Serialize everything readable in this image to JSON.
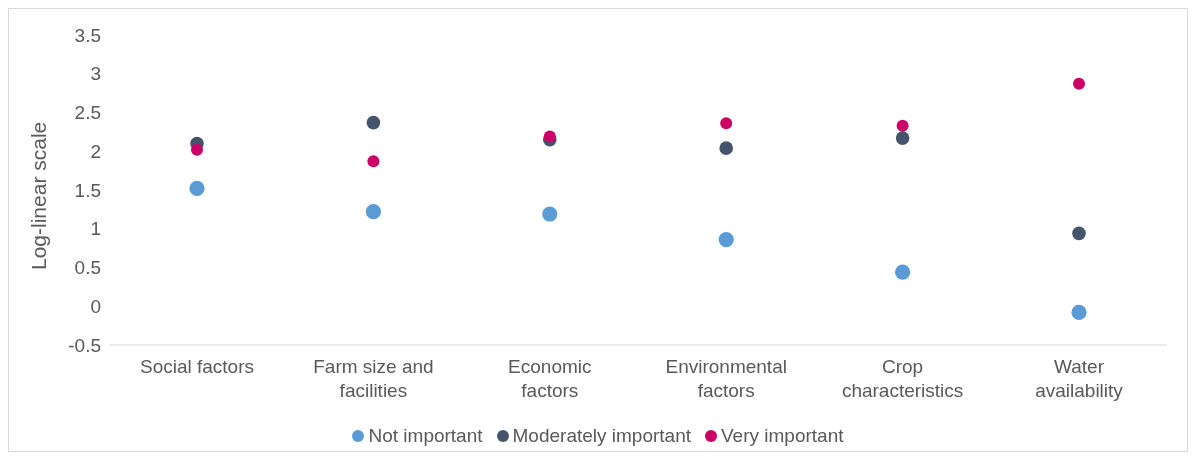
{
  "chart_data": {
    "type": "scatter",
    "ylabel": "Log-linear scale",
    "categories": [
      "Social factors",
      "Farm size and facilities",
      "Economic factors",
      "Environmental factors",
      "Crop characteristics",
      "Water availability"
    ],
    "series": [
      {
        "name": "Not important",
        "color": "#5b9bd5",
        "values": [
          1.52,
          1.22,
          1.19,
          0.86,
          0.44,
          -0.08
        ]
      },
      {
        "name": "Moderately important",
        "color": "#44546a",
        "values": [
          2.1,
          2.37,
          2.15,
          2.04,
          2.17,
          0.94
        ]
      },
      {
        "name": "Very important",
        "color": "#cc0066",
        "values": [
          2.02,
          1.87,
          2.19,
          2.36,
          2.33,
          2.87
        ]
      }
    ],
    "ylim": [
      -0.5,
      3.5
    ],
    "yticks": [
      -0.5,
      0,
      0.5,
      1,
      1.5,
      2,
      2.5,
      3,
      3.5
    ],
    "marker": "circle",
    "legend": "bottom"
  }
}
